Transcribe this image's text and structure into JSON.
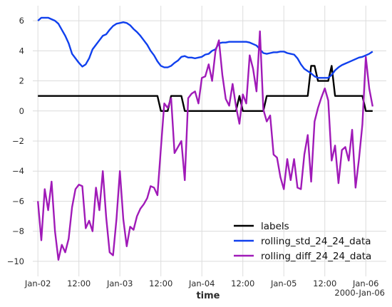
{
  "chart_data": {
    "type": "line",
    "title": "",
    "xlabel": "time",
    "ylabel": "",
    "x_tick_labels": [
      "Jan-02",
      "12:00",
      "Jan-03",
      "12:00",
      "Jan-04",
      "12:00",
      "Jan-05",
      "12:00",
      "Jan-06"
    ],
    "x_tick_hours": [
      0,
      12,
      24,
      36,
      48,
      60,
      72,
      84,
      96
    ],
    "x_offset_label": "2000-Jan-06",
    "xlim_hours": [
      -1.5,
      102
    ],
    "ylim": [
      -11,
      7
    ],
    "y_ticks": [
      -10,
      -8,
      -6,
      -4,
      -2,
      0,
      2,
      4,
      6
    ],
    "grid": true,
    "legend_position": "lower right",
    "series": [
      {
        "name": "labels",
        "color": "#000000",
        "points": [
          [
            0,
            1
          ],
          [
            35,
            1
          ],
          [
            36,
            0
          ],
          [
            38,
            0
          ],
          [
            39,
            1
          ],
          [
            42,
            1
          ],
          [
            43,
            0
          ],
          [
            58,
            0
          ],
          [
            59,
            1
          ],
          [
            60,
            0
          ],
          [
            66,
            0
          ],
          [
            67,
            1
          ],
          [
            79,
            1
          ],
          [
            80,
            3
          ],
          [
            81,
            3
          ],
          [
            82,
            2
          ],
          [
            85,
            2
          ],
          [
            86,
            3
          ],
          [
            87,
            1
          ],
          [
            95,
            1
          ],
          [
            96,
            0
          ],
          [
            98,
            0
          ]
        ]
      },
      {
        "name": "rolling_std_24_24_data",
        "color": "#1040ee",
        "points": [
          [
            0,
            6.0
          ],
          [
            1,
            6.2
          ],
          [
            2,
            6.2
          ],
          [
            3,
            6.2
          ],
          [
            4,
            6.1
          ],
          [
            5,
            6.0
          ],
          [
            6,
            5.8
          ],
          [
            7,
            5.4
          ],
          [
            8,
            5.0
          ],
          [
            9,
            4.5
          ],
          [
            10,
            3.8
          ],
          [
            11,
            3.5
          ],
          [
            12,
            3.2
          ],
          [
            13,
            2.95
          ],
          [
            14,
            3.1
          ],
          [
            15,
            3.5
          ],
          [
            16,
            4.1
          ],
          [
            17,
            4.4
          ],
          [
            18,
            4.7
          ],
          [
            19,
            5.0
          ],
          [
            20,
            5.1
          ],
          [
            21,
            5.4
          ],
          [
            22,
            5.65
          ],
          [
            23,
            5.8
          ],
          [
            24,
            5.85
          ],
          [
            25,
            5.9
          ],
          [
            26,
            5.85
          ],
          [
            27,
            5.7
          ],
          [
            28,
            5.45
          ],
          [
            29,
            5.25
          ],
          [
            30,
            5.0
          ],
          [
            31,
            4.7
          ],
          [
            32,
            4.4
          ],
          [
            33,
            4.0
          ],
          [
            34,
            3.7
          ],
          [
            35,
            3.3
          ],
          [
            36,
            3.0
          ],
          [
            37,
            2.9
          ],
          [
            38,
            2.9
          ],
          [
            39,
            3.0
          ],
          [
            40,
            3.2
          ],
          [
            41,
            3.35
          ],
          [
            42,
            3.6
          ],
          [
            43,
            3.65
          ],
          [
            44,
            3.55
          ],
          [
            45,
            3.55
          ],
          [
            46,
            3.5
          ],
          [
            47,
            3.55
          ],
          [
            48,
            3.6
          ],
          [
            49,
            3.75
          ],
          [
            50,
            3.8
          ],
          [
            51,
            4.0
          ],
          [
            52,
            4.1
          ],
          [
            53,
            4.5
          ],
          [
            54,
            4.55
          ],
          [
            55,
            4.55
          ],
          [
            56,
            4.6
          ],
          [
            57,
            4.6
          ],
          [
            58,
            4.6
          ],
          [
            59,
            4.6
          ],
          [
            60,
            4.6
          ],
          [
            61,
            4.6
          ],
          [
            62,
            4.55
          ],
          [
            63,
            4.45
          ],
          [
            64,
            4.35
          ],
          [
            65,
            4.1
          ],
          [
            66,
            3.85
          ],
          [
            67,
            3.8
          ],
          [
            68,
            3.85
          ],
          [
            69,
            3.9
          ],
          [
            70,
            3.9
          ],
          [
            71,
            3.95
          ],
          [
            72,
            3.95
          ],
          [
            73,
            3.85
          ],
          [
            74,
            3.8
          ],
          [
            75,
            3.75
          ],
          [
            76,
            3.5
          ],
          [
            77,
            3.1
          ],
          [
            78,
            2.8
          ],
          [
            79,
            2.65
          ],
          [
            80,
            2.5
          ],
          [
            81,
            2.3
          ],
          [
            82,
            2.2
          ],
          [
            83,
            2.2
          ],
          [
            84,
            2.2
          ],
          [
            85,
            2.2
          ],
          [
            86,
            2.4
          ],
          [
            87,
            2.7
          ],
          [
            88,
            2.9
          ],
          [
            89,
            3.05
          ],
          [
            90,
            3.15
          ],
          [
            91,
            3.25
          ],
          [
            92,
            3.35
          ],
          [
            93,
            3.45
          ],
          [
            94,
            3.55
          ],
          [
            95,
            3.6
          ],
          [
            96,
            3.7
          ],
          [
            97,
            3.8
          ],
          [
            98,
            3.95
          ]
        ]
      },
      {
        "name": "rolling_diff_24_24_data",
        "color": "#a01ab8",
        "points": [
          [
            0,
            -6.0
          ],
          [
            1,
            -8.6
          ],
          [
            2,
            -5.2
          ],
          [
            3,
            -6.6
          ],
          [
            4,
            -4.7
          ],
          [
            5,
            -8.0
          ],
          [
            6,
            -9.9
          ],
          [
            7,
            -8.9
          ],
          [
            8,
            -9.4
          ],
          [
            9,
            -8.5
          ],
          [
            10,
            -6.4
          ],
          [
            11,
            -5.2
          ],
          [
            12,
            -4.9
          ],
          [
            13,
            -5.0
          ],
          [
            14,
            -7.8
          ],
          [
            15,
            -7.3
          ],
          [
            16,
            -8.0
          ],
          [
            17,
            -5.1
          ],
          [
            18,
            -6.6
          ],
          [
            19,
            -4.0
          ],
          [
            20,
            -7.1
          ],
          [
            21,
            -9.4
          ],
          [
            22,
            -9.6
          ],
          [
            23,
            -7.2
          ],
          [
            24,
            -4.0
          ],
          [
            25,
            -7.2
          ],
          [
            26,
            -9.0
          ],
          [
            27,
            -7.7
          ],
          [
            28,
            -7.9
          ],
          [
            29,
            -7.0
          ],
          [
            30,
            -6.5
          ],
          [
            31,
            -6.2
          ],
          [
            32,
            -5.8
          ],
          [
            33,
            -5.0
          ],
          [
            34,
            -5.1
          ],
          [
            35,
            -5.6
          ],
          [
            36,
            -2.5
          ],
          [
            37,
            0.5
          ],
          [
            38,
            0.2
          ],
          [
            39,
            0.85
          ],
          [
            40,
            -2.8
          ],
          [
            41,
            -2.4
          ],
          [
            42,
            -2.0
          ],
          [
            43,
            -4.6
          ],
          [
            44,
            0.85
          ],
          [
            45,
            1.15
          ],
          [
            46,
            1.3
          ],
          [
            47,
            0.5
          ],
          [
            48,
            2.2
          ],
          [
            49,
            2.3
          ],
          [
            50,
            3.1
          ],
          [
            51,
            2.0
          ],
          [
            52,
            4.0
          ],
          [
            53,
            4.7
          ],
          [
            54,
            2.4
          ],
          [
            55,
            0.8
          ],
          [
            56,
            0.35
          ],
          [
            57,
            1.8
          ],
          [
            58,
            0.3
          ],
          [
            59,
            -0.85
          ],
          [
            60,
            1.1
          ],
          [
            61,
            0.5
          ],
          [
            62,
            3.7
          ],
          [
            63,
            2.8
          ],
          [
            64,
            1.3
          ],
          [
            65,
            5.3
          ],
          [
            66,
            0.1
          ],
          [
            67,
            -0.7
          ],
          [
            68,
            -0.3
          ],
          [
            69,
            -2.9
          ],
          [
            70,
            -3.1
          ],
          [
            71,
            -4.4
          ],
          [
            72,
            -5.2
          ],
          [
            73,
            -3.2
          ],
          [
            74,
            -4.6
          ],
          [
            75,
            -3.2
          ],
          [
            76,
            -5.1
          ],
          [
            77,
            -5.2
          ],
          [
            78,
            -2.9
          ],
          [
            79,
            -1.6
          ],
          [
            80,
            -4.7
          ],
          [
            81,
            -0.7
          ],
          [
            82,
            0.2
          ],
          [
            83,
            0.9
          ],
          [
            84,
            1.5
          ],
          [
            85,
            0.7
          ],
          [
            86,
            -3.3
          ],
          [
            87,
            -2.3
          ],
          [
            88,
            -4.8
          ],
          [
            89,
            -2.6
          ],
          [
            90,
            -2.4
          ],
          [
            91,
            -3.3
          ],
          [
            92,
            -1.25
          ],
          [
            93,
            -5.1
          ],
          [
            94,
            -3.2
          ],
          [
            95,
            -0.9
          ],
          [
            96,
            3.6
          ],
          [
            97,
            1.5
          ],
          [
            98,
            0.3
          ]
        ]
      }
    ]
  }
}
